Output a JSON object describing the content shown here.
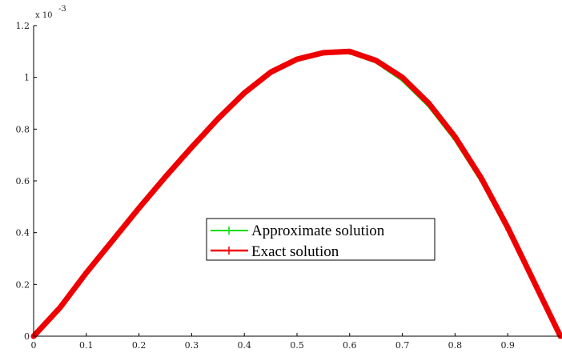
{
  "chart_data": {
    "type": "line",
    "title": "",
    "xlabel": "",
    "ylabel": "",
    "xlim": [
      0,
      1
    ],
    "ylim": [
      0,
      0.0012
    ],
    "x_ticks": [
      0,
      0.1,
      0.2,
      0.3,
      0.4,
      0.5,
      0.6,
      0.7,
      0.8,
      0.9
    ],
    "x_tick_labels": [
      "0",
      "0.1",
      "0.2",
      "0.3",
      "0.4",
      "0.5",
      "0.6",
      "0.7",
      "0.8",
      "0.9"
    ],
    "y_ticks": [
      0,
      0.0002,
      0.0004,
      0.0006,
      0.0008,
      0.001,
      0.0012
    ],
    "y_tick_labels": [
      "0",
      "0.2",
      "0.4",
      "0.6",
      "0.8",
      "1",
      "1.2"
    ],
    "y_exponent_label": "x 10",
    "y_exponent_power": "-3",
    "grid": false,
    "legend_position": "center",
    "series": [
      {
        "name": "Approximate solution",
        "color": "#00dd00",
        "marker": "+",
        "x": [
          0,
          0.05,
          0.1,
          0.15,
          0.2,
          0.25,
          0.3,
          0.35,
          0.4,
          0.45,
          0.5,
          0.55,
          0.6,
          0.65,
          0.7,
          0.75,
          0.8,
          0.85,
          0.9,
          0.95,
          1
        ],
        "y": [
          0,
          0.00011,
          0.000245,
          0.00037,
          0.000495,
          0.000615,
          0.00073,
          0.00084,
          0.00094,
          0.00102,
          0.00107,
          0.001095,
          0.001095,
          0.00106,
          0.00099,
          0.00089,
          0.00076,
          0.0006,
          0.00041,
          0.00021,
          0
        ]
      },
      {
        "name": "Exact solution",
        "color": "#ee0000",
        "marker": "+",
        "x": [
          0,
          0.05,
          0.1,
          0.15,
          0.2,
          0.25,
          0.3,
          0.35,
          0.4,
          0.45,
          0.5,
          0.55,
          0.6,
          0.65,
          0.7,
          0.75,
          0.8,
          0.85,
          0.9,
          0.95,
          1
        ],
        "y": [
          0,
          0.00011,
          0.000245,
          0.00037,
          0.000495,
          0.000615,
          0.00073,
          0.00084,
          0.00094,
          0.00102,
          0.00107,
          0.001095,
          0.0011,
          0.001065,
          0.001,
          0.0009,
          0.00077,
          0.00061,
          0.00042,
          0.00021,
          0
        ]
      }
    ]
  }
}
